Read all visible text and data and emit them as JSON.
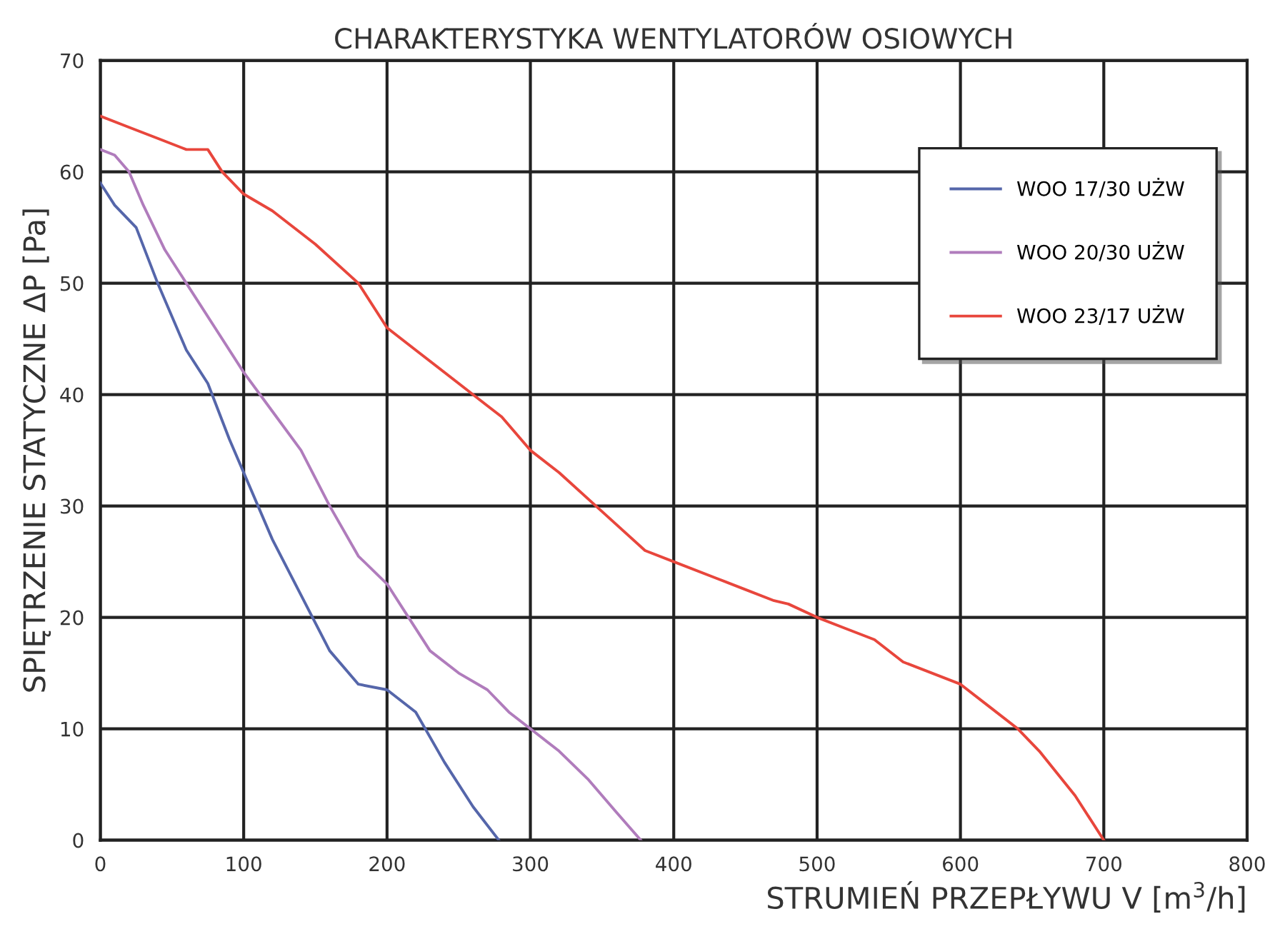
{
  "chart_data": {
    "type": "line",
    "title": "CHARAKTERYSTYKA WENTYLATORÓW OSIOWYCH",
    "xlabel": "STRUMIEŃ PRZEPŁYWU V [m$^{3}$/h]",
    "ylabel": "SPIĘTRZENIE STATYCZNE ΔP [Pa]",
    "xlim": [
      0,
      800
    ],
    "ylim": [
      0,
      70
    ],
    "xticks": [
      0,
      100,
      200,
      300,
      400,
      500,
      600,
      700,
      800
    ],
    "yticks": [
      0,
      10,
      20,
      30,
      40,
      50,
      60,
      70
    ],
    "grid": true,
    "legend": "top right",
    "line_style": "solid",
    "marker": "none",
    "series": [
      {
        "name": "WOO 17/30 UŻW",
        "color": "#5566aa",
        "x": [
          0,
          10,
          25,
          40,
          60,
          75,
          90,
          100,
          120,
          140,
          160,
          180,
          200,
          220,
          240,
          260,
          278
        ],
        "values": [
          59,
          57,
          55,
          50,
          44,
          41,
          36,
          33,
          27,
          22,
          17,
          14,
          13.5,
          11.5,
          7,
          3,
          0
        ]
      },
      {
        "name": "WOO 20/30 UŻW",
        "color": "#b07cbc",
        "x": [
          0,
          10,
          20,
          30,
          45,
          60,
          80,
          100,
          120,
          140,
          160,
          180,
          200,
          215,
          230,
          250,
          270,
          285,
          300,
          320,
          340,
          360,
          377
        ],
        "values": [
          62,
          61.5,
          60,
          57,
          53,
          50,
          46,
          42,
          38.5,
          35,
          30,
          25.5,
          23,
          20,
          17,
          15,
          13.5,
          11.5,
          10,
          8,
          5.5,
          2.5,
          0
        ]
      },
      {
        "name": "WOO 23/17 UŻW",
        "color": "#e8463c",
        "x": [
          0,
          20,
          40,
          60,
          75,
          85,
          100,
          120,
          150,
          180,
          200,
          220,
          250,
          270,
          280,
          300,
          320,
          350,
          380,
          400,
          430,
          450,
          470,
          480,
          500,
          520,
          540,
          560,
          600,
          620,
          640,
          655,
          680,
          700
        ],
        "values": [
          65,
          64,
          63,
          62,
          62,
          60,
          58,
          56.5,
          53.5,
          50,
          46,
          44,
          41,
          39,
          38,
          35,
          33,
          29.5,
          26,
          25,
          23.5,
          22.5,
          21.5,
          21.2,
          20,
          19,
          18,
          16,
          14,
          12,
          10,
          8,
          4,
          0
        ]
      }
    ]
  }
}
